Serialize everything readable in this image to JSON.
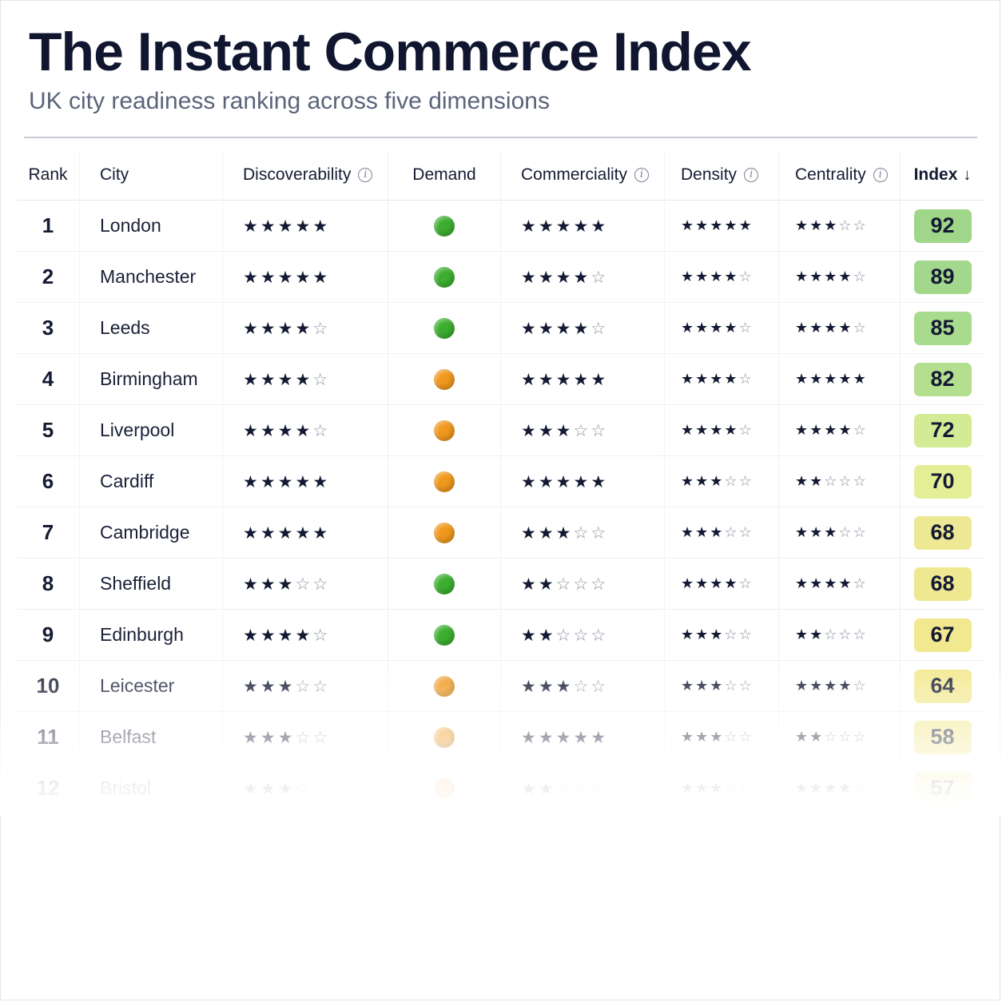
{
  "title": "The Instant Commerce Index",
  "subtitle": "UK city readiness ranking across five dimensions",
  "header": {
    "rank": "Rank",
    "city": "City",
    "discoverability": "Discoverability",
    "demand": "Demand",
    "commerciality": "Commerciality",
    "density": "Density",
    "centrality": "Centrality",
    "index": "Index",
    "info_glyph": "i",
    "sort_glyph": "↓"
  },
  "icons": {
    "info": "info-icon",
    "sort": "arrow-down-icon",
    "star_full": "★",
    "star_empty": "☆"
  },
  "colors": {
    "demand_green": "#3cae2f",
    "demand_orange": "#f0981d",
    "index_high": "#9fd68a",
    "index_mid": "#d7eb91",
    "index_low": "#f3e88e"
  },
  "rows": [
    {
      "rank": "1",
      "city": "London",
      "discoverability": 5,
      "demand": "green",
      "commerciality": 5,
      "density": 5,
      "centrality": 3,
      "index": "92",
      "badge": "#9fd68a"
    },
    {
      "rank": "2",
      "city": "Manchester",
      "discoverability": 5,
      "demand": "green",
      "commerciality": 4,
      "density": 4,
      "centrality": 4,
      "index": "89",
      "badge": "#a3d88c"
    },
    {
      "rank": "3",
      "city": "Leeds",
      "discoverability": 4,
      "demand": "green",
      "commerciality": 4,
      "density": 4,
      "centrality": 4,
      "index": "85",
      "badge": "#a9db8e"
    },
    {
      "rank": "4",
      "city": "Birmingham",
      "discoverability": 4,
      "demand": "orange",
      "commerciality": 5,
      "density": 4,
      "centrality": 5,
      "index": "82",
      "badge": "#b4df8f"
    },
    {
      "rank": "5",
      "city": "Liverpool",
      "discoverability": 4,
      "demand": "orange",
      "commerciality": 3,
      "density": 4,
      "centrality": 4,
      "index": "72",
      "badge": "#d3eb94"
    },
    {
      "rank": "6",
      "city": "Cardiff",
      "discoverability": 5,
      "demand": "orange",
      "commerciality": 5,
      "density": 3,
      "centrality": 2,
      "index": "70",
      "badge": "#e4ee96"
    },
    {
      "rank": "7",
      "city": "Cambridge",
      "discoverability": 5,
      "demand": "orange",
      "commerciality": 3,
      "density": 3,
      "centrality": 3,
      "index": "68",
      "badge": "#ece893"
    },
    {
      "rank": "8",
      "city": "Sheffield",
      "discoverability": 3,
      "demand": "green",
      "commerciality": 2,
      "density": 4,
      "centrality": 4,
      "index": "68",
      "badge": "#eee891"
    },
    {
      "rank": "9",
      "city": "Edinburgh",
      "discoverability": 4,
      "demand": "green",
      "commerciality": 2,
      "density": 3,
      "centrality": 2,
      "index": "67",
      "badge": "#f1e88f"
    },
    {
      "rank": "10",
      "city": "Leicester",
      "discoverability": 3,
      "demand": "orange",
      "commerciality": 3,
      "density": 3,
      "centrality": 4,
      "index": "64",
      "badge": "#f3e88e"
    },
    {
      "rank": "11",
      "city": "Belfast",
      "discoverability": 3,
      "demand": "orange",
      "commerciality": 5,
      "density": 3,
      "centrality": 2,
      "index": "58",
      "badge": "#f3e88e"
    },
    {
      "rank": "12",
      "city": "Bristol",
      "discoverability": 3,
      "demand": "orange",
      "commerciality": 2,
      "density": 3,
      "centrality": 4,
      "index": "57",
      "badge": "#f3e88e"
    }
  ]
}
